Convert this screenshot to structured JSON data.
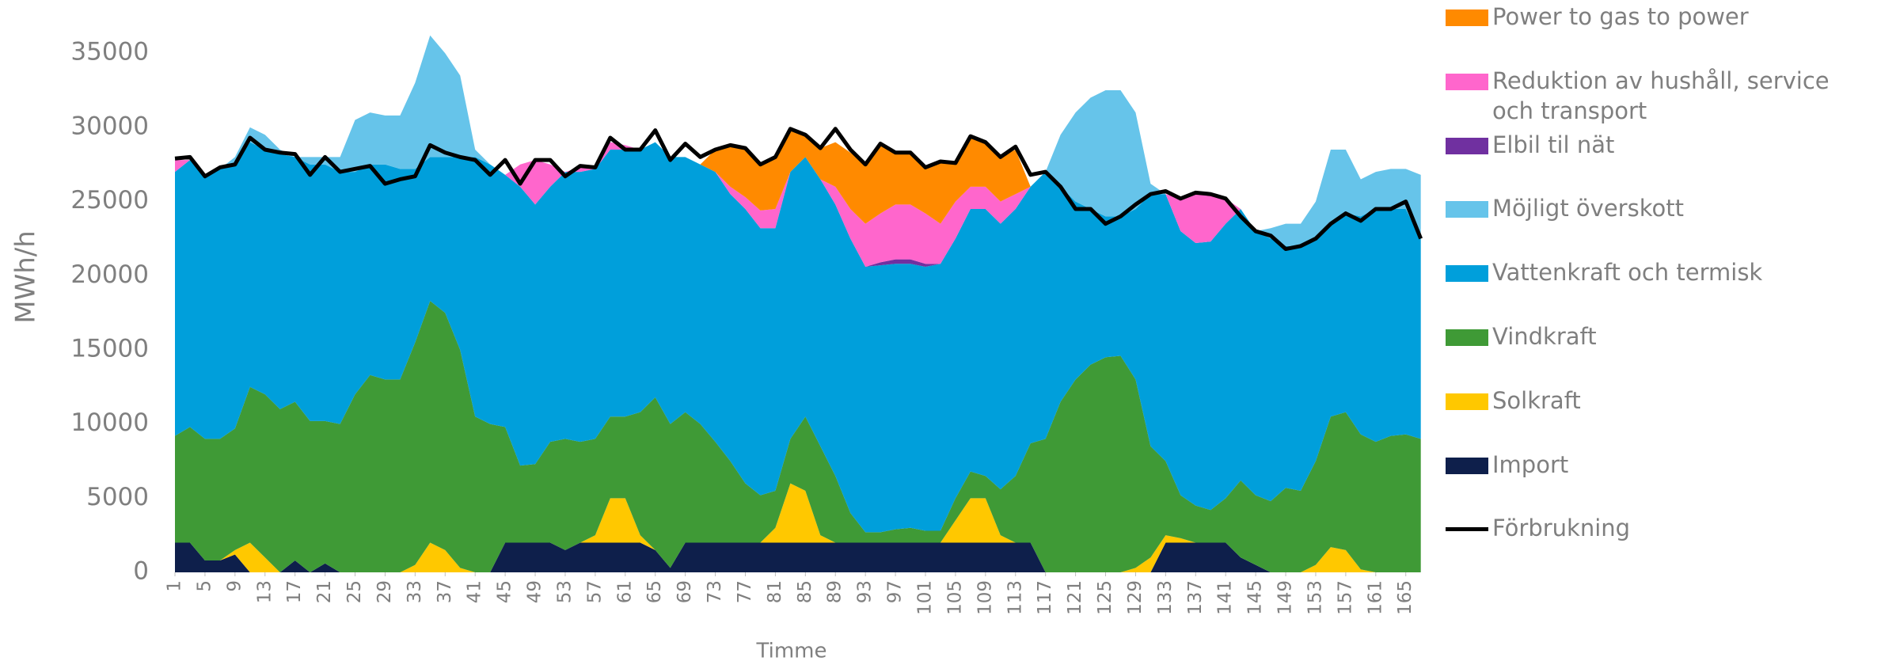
{
  "chart_data": {
    "type": "area",
    "stacked": true,
    "x_label": "Timme",
    "y_label": "MWh/h",
    "xlim": [
      1,
      168
    ],
    "ylim": [
      0,
      38000
    ],
    "xticks": [
      1,
      5,
      9,
      13,
      17,
      21,
      25,
      29,
      33,
      37,
      41,
      45,
      49,
      53,
      57,
      61,
      65,
      69,
      73,
      77,
      81,
      85,
      89,
      93,
      97,
      101,
      105,
      109,
      113,
      117,
      121,
      125,
      129,
      133,
      137,
      141,
      145,
      149,
      153,
      157,
      161,
      165
    ],
    "yticks": [
      0,
      5000,
      10000,
      15000,
      20000,
      25000,
      30000,
      35000
    ],
    "grid": false,
    "x": [
      1,
      3,
      5,
      7,
      9,
      11,
      13,
      15,
      17,
      19,
      21,
      23,
      25,
      27,
      29,
      31,
      33,
      35,
      37,
      39,
      41,
      43,
      45,
      47,
      49,
      51,
      53,
      55,
      57,
      59,
      61,
      63,
      65,
      67,
      69,
      71,
      73,
      75,
      77,
      79,
      81,
      83,
      85,
      87,
      89,
      91,
      93,
      95,
      97,
      99,
      101,
      103,
      105,
      107,
      109,
      111,
      113,
      115,
      117,
      119,
      121,
      123,
      125,
      127,
      129,
      131,
      133,
      135,
      137,
      139,
      141,
      143,
      145,
      147,
      149,
      151,
      153,
      155,
      157,
      159,
      161,
      163,
      165,
      167
    ],
    "series": [
      {
        "name": "Power to gas to power",
        "color": "#ff8a00",
        "values": [
          0,
          0,
          0,
          0,
          0,
          0,
          0,
          0,
          0,
          0,
          0,
          0,
          0,
          0,
          0,
          0,
          0,
          0,
          0,
          0,
          0,
          0,
          0,
          0,
          0,
          0,
          0,
          0,
          0,
          0,
          0,
          0,
          0,
          0,
          0,
          0,
          1500,
          2700,
          3200,
          3100,
          3500,
          2800,
          1500,
          2100,
          3000,
          3800,
          4000,
          4800,
          3500,
          3500,
          3100,
          4100,
          2700,
          3500,
          3000,
          3000,
          3000,
          0,
          0,
          0,
          0,
          0,
          0,
          0,
          0,
          0,
          0,
          0,
          0,
          0,
          0,
          0,
          0,
          0,
          0,
          0,
          0,
          0,
          0,
          0,
          0,
          0,
          0,
          0
        ]
      },
      {
        "name": "Reduktion av hushåll, service och transport",
        "color": "#ff66cc",
        "values": [
          800,
          0,
          0,
          0,
          0,
          0,
          0,
          0,
          0,
          0,
          0,
          0,
          0,
          0,
          0,
          0,
          0,
          0,
          0,
          0,
          0,
          0,
          0,
          1500,
          3000,
          1500,
          0,
          300,
          0,
          500,
          300,
          0,
          0,
          0,
          0,
          0,
          0,
          500,
          800,
          1200,
          1300,
          0,
          0,
          0,
          1200,
          2000,
          2900,
          3300,
          3700,
          3700,
          3400,
          2700,
          2500,
          1500,
          1500,
          1500,
          1000,
          0,
          0,
          0,
          0,
          0,
          0,
          0,
          0,
          0,
          0,
          2200,
          3400,
          3200,
          1700,
          0,
          0,
          0,
          0,
          0,
          0,
          0,
          0,
          0,
          0,
          0,
          0,
          0
        ]
      },
      {
        "name": "Elbil til nät",
        "color": "#7030a0",
        "values": [
          0,
          0,
          0,
          0,
          0,
          0,
          0,
          0,
          0,
          0,
          0,
          0,
          0,
          0,
          0,
          0,
          0,
          0,
          0,
          0,
          0,
          0,
          0,
          0,
          0,
          0,
          0,
          0,
          0,
          0,
          0,
          0,
          0,
          0,
          0,
          0,
          0,
          0,
          0,
          0,
          0,
          0,
          0,
          0,
          0,
          0,
          0,
          200,
          300,
          300,
          200,
          0,
          0,
          0,
          0,
          0,
          0,
          0,
          0,
          0,
          0,
          0,
          0,
          0,
          0,
          0,
          0,
          0,
          0,
          0,
          0,
          0,
          0,
          0,
          0,
          0,
          0,
          0,
          0,
          0,
          0,
          0,
          0,
          0
        ]
      },
      {
        "name": "Möjligt överskott",
        "color": "#66c4ea",
        "values": [
          0,
          0,
          0,
          0,
          500,
          1000,
          1000,
          300,
          0,
          500,
          500,
          1000,
          3500,
          3500,
          3300,
          3600,
          5800,
          8200,
          7000,
          5500,
          500,
          0,
          0,
          0,
          0,
          0,
          0,
          0,
          0,
          0,
          0,
          0,
          0,
          0,
          0,
          0,
          0,
          0,
          0,
          0,
          0,
          0,
          0,
          0,
          0,
          0,
          0,
          0,
          0,
          0,
          0,
          0,
          0,
          0,
          0,
          0,
          0,
          0,
          0,
          3500,
          6000,
          7500,
          8500,
          8500,
          6500,
          700,
          0,
          0,
          0,
          0,
          0,
          0,
          0,
          700,
          1500,
          1500,
          2500,
          5000,
          4300,
          2500,
          2500,
          2700,
          2700,
          4300
        ]
      },
      {
        "name": "Vattenkraft och termisk",
        "color": "#009fdb",
        "values": [
          17800,
          18000,
          17700,
          18200,
          17800,
          16500,
          16500,
          17200,
          16500,
          17300,
          17300,
          17000,
          15000,
          14200,
          14500,
          14200,
          11700,
          9700,
          10500,
          13000,
          17500,
          17500,
          17000,
          18800,
          17500,
          17200,
          18000,
          18200,
          18200,
          18000,
          18000,
          17700,
          17200,
          18000,
          17200,
          17500,
          18200,
          18000,
          18500,
          18000,
          17700,
          18000,
          17500,
          18000,
          18300,
          18500,
          17900,
          18000,
          17900,
          17800,
          17800,
          18000,
          17500,
          17700,
          18000,
          17900,
          18000,
          17300,
          18000,
          14500,
          12000,
          10500,
          9500,
          9400,
          11500,
          17000,
          18000,
          17800,
          17700,
          18100,
          18500,
          18300,
          17800,
          17700,
          16300,
          16500,
          15000,
          13000,
          13400,
          14700,
          15700,
          15300,
          15200,
          13500
        ]
      },
      {
        "name": "Vindkraft",
        "color": "#3f9a36",
        "values": [
          7200,
          7800,
          8200,
          8200,
          8200,
          10500,
          11000,
          11000,
          10700,
          10200,
          9600,
          10000,
          12000,
          13300,
          13000,
          13000,
          15000,
          16300,
          16000,
          14700,
          10500,
          10000,
          7800,
          5200,
          5300,
          6800,
          7500,
          6800,
          6500,
          5500,
          5500,
          8300,
          10300,
          9700,
          8800,
          8000,
          6800,
          5500,
          4000,
          3200,
          2500,
          3000,
          5000,
          6000,
          4500,
          2000,
          700,
          700,
          900,
          1000,
          800,
          800,
          1500,
          1800,
          1500,
          3100,
          4500,
          6700,
          9000,
          11500,
          13000,
          14000,
          14500,
          14600,
          12700,
          7500,
          5000,
          2900,
          2500,
          2200,
          3000,
          5200,
          4700,
          4800,
          5700,
          5500,
          7000,
          8800,
          9300,
          9100,
          8800,
          9200,
          9300,
          9000
        ]
      },
      {
        "name": "Solkraft",
        "color": "#ffc800",
        "values": [
          0,
          0,
          0,
          0,
          300,
          2000,
          1000,
          0,
          0,
          0,
          0,
          0,
          0,
          0,
          0,
          0,
          500,
          2000,
          1500,
          300,
          0,
          0,
          0,
          0,
          0,
          0,
          0,
          0,
          500,
          3000,
          3000,
          500,
          0,
          0,
          0,
          0,
          0,
          0,
          0,
          0,
          1000,
          4000,
          3500,
          500,
          0,
          0,
          0,
          0,
          0,
          0,
          0,
          0,
          1500,
          3000,
          3000,
          500,
          0,
          0,
          0,
          0,
          0,
          0,
          0,
          0,
          300,
          1000,
          500,
          300,
          0,
          0,
          0,
          0,
          0,
          0,
          0,
          0,
          500,
          1700,
          1500,
          200,
          0,
          0,
          0,
          0
        ]
      },
      {
        "name": "Import",
        "color": "#0e1f4b",
        "values": [
          2000,
          2000,
          800,
          800,
          1200,
          0,
          0,
          0,
          800,
          0,
          600,
          0,
          0,
          0,
          0,
          0,
          0,
          0,
          0,
          0,
          0,
          0,
          2000,
          2000,
          2000,
          2000,
          1500,
          2000,
          2000,
          2000,
          2000,
          2000,
          1500,
          300,
          2000,
          2000,
          2000,
          2000,
          2000,
          2000,
          2000,
          2000,
          2000,
          2000,
          2000,
          2000,
          2000,
          2000,
          2000,
          2000,
          2000,
          2000,
          2000,
          2000,
          2000,
          2000,
          2000,
          2000,
          0,
          0,
          0,
          0,
          0,
          0,
          0,
          0,
          2000,
          2000,
          2000,
          2000,
          2000,
          1000,
          500,
          0,
          0,
          0,
          0,
          0,
          0,
          0,
          0,
          0,
          0,
          0
        ]
      },
      {
        "name": "Förbrukning",
        "type": "line",
        "color": "#000000",
        "values": [
          27900,
          28000,
          26700,
          27300,
          27500,
          29300,
          28500,
          28300,
          28200,
          26800,
          28000,
          27000,
          27200,
          27400,
          26200,
          26500,
          26700,
          28800,
          28300,
          28000,
          27800,
          26800,
          27800,
          26200,
          27800,
          27800,
          26700,
          27400,
          27300,
          29300,
          28500,
          28500,
          29800,
          27800,
          28900,
          28000,
          28500,
          28800,
          28600,
          27500,
          28000,
          29900,
          29500,
          28600,
          29900,
          28500,
          27500,
          28900,
          28300,
          28300,
          27300,
          27700,
          27600,
          29400,
          29000,
          28000,
          28700,
          26800,
          27000,
          26000,
          24500,
          24500,
          23500,
          24000,
          24800,
          25500,
          25700,
          25200,
          25600,
          25500,
          25200,
          24000,
          23000,
          22700,
          21800,
          22000,
          22500,
          23500,
          24200,
          23700,
          24500,
          24500,
          25000,
          22500
        ]
      }
    ]
  }
}
